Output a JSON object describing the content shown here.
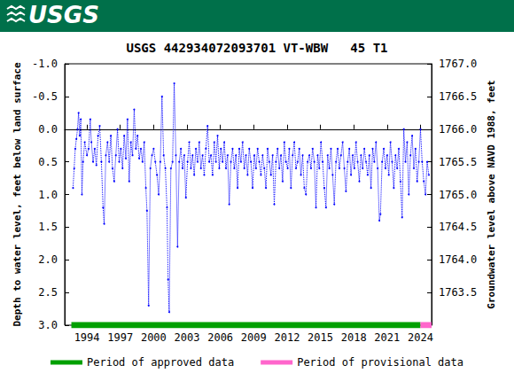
{
  "header": {
    "logo": "USGS"
  },
  "chart_data": {
    "type": "line",
    "title": "USGS 442934072093701 VT-WBW   45 T1",
    "ylabel": "Depth to water level, feet below land surface",
    "y2label": "Groundwater level above NAVD 1988, feet",
    "xlim": [
      1992,
      2025
    ],
    "xticks": [
      1994,
      1997,
      2000,
      2003,
      2006,
      2009,
      2012,
      2015,
      2018,
      2021,
      2024
    ],
    "ylim": [
      3.0,
      -1.0
    ],
    "yticks": [
      {
        "value": -1.0,
        "label": "-1.0"
      },
      {
        "value": -0.5,
        "label": "-0.5"
      },
      {
        "value": 0.0,
        "label": "0.0"
      },
      {
        "value": 0.5,
        "label": "0.5"
      },
      {
        "value": 1.0,
        "label": "1.0"
      },
      {
        "value": 1.5,
        "label": "1.5"
      },
      {
        "value": 2.0,
        "label": "2.0"
      },
      {
        "value": 2.5,
        "label": "2.5"
      },
      {
        "value": 3.0,
        "label": "3.0"
      }
    ],
    "y2lim": [
      1763.0,
      1767.0
    ],
    "y2ticks": [
      1763.5,
      {
        "value": 1764.0,
        "label": "1764.0"
      },
      1764.5,
      {
        "value": 1765.0,
        "label": "1765.0"
      },
      1765.5,
      {
        "value": 1766.0,
        "label": "1766.0"
      },
      1766.5,
      {
        "value": 1767.0,
        "label": "1767.0"
      }
    ],
    "grid": false,
    "legend": "bottom",
    "x": [
      1992.75,
      1992.85,
      1992.95,
      1993.05,
      1993.15,
      1993.25,
      1993.35,
      1993.45,
      1993.55,
      1993.65,
      1993.8,
      1994.0,
      1994.15,
      1994.3,
      1994.4,
      1994.55,
      1994.7,
      1994.85,
      1995.0,
      1995.15,
      1995.3,
      1995.45,
      1995.55,
      1995.7,
      1995.85,
      1996.0,
      1996.15,
      1996.3,
      1996.45,
      1996.6,
      1996.75,
      1996.9,
      1997.05,
      1997.2,
      1997.35,
      1997.5,
      1997.65,
      1997.8,
      1997.95,
      1998.1,
      1998.25,
      1998.4,
      1998.55,
      1998.7,
      1998.85,
      1999.0,
      1999.15,
      1999.3,
      1999.4,
      1999.55,
      1999.7,
      1999.85,
      2000.0,
      2000.15,
      2000.3,
      2000.45,
      2000.6,
      2000.75,
      2000.9,
      2001.05,
      2001.2,
      2001.3,
      2001.4,
      2001.55,
      2001.7,
      2001.85,
      2002.0,
      2002.15,
      2002.3,
      2002.45,
      2002.6,
      2002.75,
      2002.9,
      2003.05,
      2003.2,
      2003.35,
      2003.5,
      2003.65,
      2003.8,
      2003.95,
      2004.1,
      2004.25,
      2004.4,
      2004.55,
      2004.7,
      2004.85,
      2005.0,
      2005.15,
      2005.3,
      2005.45,
      2005.6,
      2005.75,
      2005.9,
      2006.05,
      2006.2,
      2006.35,
      2006.5,
      2006.65,
      2006.8,
      2006.95,
      2007.1,
      2007.25,
      2007.4,
      2007.55,
      2007.7,
      2007.85,
      2008.0,
      2008.15,
      2008.3,
      2008.45,
      2008.6,
      2008.75,
      2008.9,
      2009.05,
      2009.2,
      2009.35,
      2009.5,
      2009.65,
      2009.8,
      2009.95,
      2010.1,
      2010.25,
      2010.4,
      2010.55,
      2010.7,
      2010.85,
      2011.0,
      2011.15,
      2011.3,
      2011.45,
      2011.6,
      2011.75,
      2011.9,
      2012.05,
      2012.2,
      2012.35,
      2012.5,
      2012.65,
      2012.8,
      2012.95,
      2013.1,
      2013.25,
      2013.4,
      2013.55,
      2013.7,
      2013.85,
      2014.0,
      2014.15,
      2014.3,
      2014.45,
      2014.6,
      2014.75,
      2014.9,
      2015.05,
      2015.2,
      2015.35,
      2015.5,
      2015.65,
      2015.8,
      2015.95,
      2016.1,
      2016.25,
      2016.4,
      2016.55,
      2016.7,
      2016.85,
      2017.0,
      2017.15,
      2017.3,
      2017.45,
      2017.6,
      2017.75,
      2017.9,
      2018.05,
      2018.2,
      2018.35,
      2018.5,
      2018.65,
      2018.8,
      2018.95,
      2019.1,
      2019.25,
      2019.4,
      2019.55,
      2019.7,
      2019.85,
      2020.0,
      2020.15,
      2020.3,
      2020.4,
      2020.55,
      2020.7,
      2020.85,
      2021.0,
      2021.15,
      2021.3,
      2021.45,
      2021.6,
      2021.75,
      2021.9,
      2022.05,
      2022.2,
      2022.35,
      2022.5,
      2022.65,
      2022.8,
      2022.95,
      2023.1,
      2023.25,
      2023.4,
      2023.55,
      2023.7,
      2023.85,
      2024.0,
      2024.15,
      2024.3,
      2024.45,
      2024.6,
      2024.75
    ],
    "series": [
      {
        "color": "#0000ff",
        "marker": "circle",
        "line_style": "dotted",
        "values": [
          0.9,
          0.6,
          0.3,
          0.15,
          0.0,
          -0.25,
          0.1,
          -0.15,
          1.0,
          0.5,
          0.2,
          0.4,
          0.3,
          -0.15,
          0.2,
          0.5,
          0.3,
          0.55,
          0.1,
          -0.05,
          0.5,
          1.2,
          1.45,
          0.4,
          0.2,
          0.5,
          0.1,
          0.6,
          0.8,
          0.4,
          0.0,
          0.5,
          0.3,
          0.6,
          0.1,
          0.45,
          -0.15,
          0.8,
          0.2,
          0.4,
          -0.3,
          0.3,
          0.1,
          0.45,
          0.3,
          0.5,
          0.2,
          0.9,
          1.25,
          2.7,
          0.6,
          0.4,
          0.3,
          0.5,
          0.7,
          1.0,
          0.5,
          -0.5,
          0.4,
          0.6,
          1.2,
          2.3,
          2.8,
          0.6,
          0.5,
          -0.7,
          0.4,
          1.8,
          0.5,
          0.3,
          0.6,
          0.4,
          1.05,
          0.5,
          0.2,
          0.6,
          0.4,
          0.7,
          0.3,
          0.5,
          0.2,
          0.6,
          0.4,
          0.7,
          0.3,
          -0.05,
          0.5,
          0.4,
          0.7,
          0.2,
          0.5,
          0.1,
          0.6,
          0.3,
          0.5,
          0.2,
          0.6,
          0.4,
          1.15,
          0.5,
          0.3,
          0.6,
          0.4,
          0.9,
          0.3,
          0.5,
          0.2,
          0.6,
          0.4,
          0.7,
          0.3,
          0.5,
          0.9,
          0.4,
          0.6,
          0.3,
          0.5,
          0.7,
          0.4,
          0.6,
          0.9,
          0.3,
          0.5,
          0.7,
          0.4,
          1.15,
          0.5,
          0.3,
          0.6,
          0.4,
          0.8,
          0.2,
          0.5,
          0.6,
          0.3,
          0.9,
          0.4,
          0.2,
          0.6,
          0.5,
          0.3,
          0.7,
          0.4,
          0.9,
          1.0,
          0.5,
          0.4,
          0.6,
          0.3,
          0.5,
          1.2,
          0.4,
          0.6,
          0.2,
          0.5,
          0.9,
          1.2,
          0.4,
          0.6,
          0.3,
          0.7,
          1.15,
          0.5,
          0.3,
          0.6,
          0.4,
          0.2,
          0.6,
          0.95,
          0.5,
          0.3,
          0.7,
          0.4,
          0.6,
          0.2,
          0.5,
          0.8,
          0.4,
          0.6,
          0.3,
          0.5,
          0.7,
          0.4,
          0.9,
          0.3,
          0.5,
          0.2,
          0.6,
          1.4,
          1.3,
          0.5,
          0.3,
          0.6,
          0.4,
          0.7,
          0.2,
          0.5,
          0.9,
          0.4,
          0.6,
          0.3,
          0.8,
          1.35,
          0.0,
          0.5,
          0.2,
          1.0,
          0.4,
          0.1,
          0.6,
          0.3,
          0.8,
          0.5,
          0.0,
          0.5,
          0.8,
          1.0,
          0.5,
          0.7
        ]
      }
    ],
    "periods": [
      {
        "name": "Period of approved data",
        "color": "#00a000",
        "start": 1992.6,
        "end": 2024.0
      },
      {
        "name": "Period of provisional data",
        "color": "#ff66cc",
        "start": 2024.0,
        "end": 2025.0
      }
    ]
  }
}
